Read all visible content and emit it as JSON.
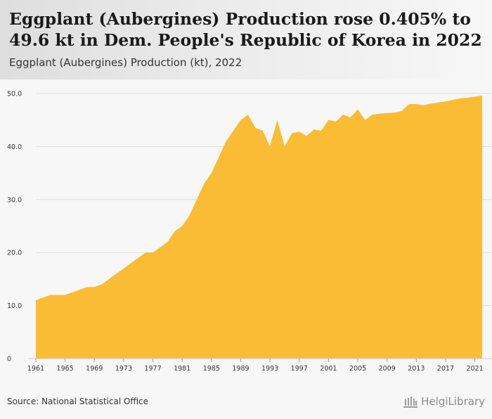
{
  "header": {
    "title": "Eggplant (Aubergines) Production rose 0.405% to 49.6 kt in Dem. People's Republic of Korea in 2022",
    "subtitle": "Eggplant (Aubergines) Production (kt), 2022"
  },
  "footer": {
    "source": "Source: National Statistical Office",
    "logo_text": "HelgiLibrary"
  },
  "colors": {
    "area_fill": "#f9bc34",
    "gridline": "#dddddd",
    "chart_bg": "#f7f7f7"
  },
  "chart_data": {
    "type": "area",
    "title": "Eggplant (Aubergines) Production (kt), 2022",
    "xlabel": "",
    "ylabel": "",
    "ylim": [
      0,
      50
    ],
    "xlim": [
      1961,
      2022
    ],
    "grid": true,
    "y_ticks": [
      "0",
      "10.0",
      "20.0",
      "30.0",
      "40.0",
      "50.0"
    ],
    "x_ticks": [
      "1961",
      "1965",
      "1969",
      "1973",
      "1977",
      "1981",
      "1985",
      "1989",
      "1993",
      "1997",
      "2001",
      "2005",
      "2009",
      "2013",
      "2017",
      "2021"
    ],
    "series": [
      {
        "x": [
          1961,
          1962,
          1963,
          1964,
          1965,
          1966,
          1967,
          1968,
          1969,
          1970,
          1971,
          1972,
          1973,
          1974,
          1975,
          1976,
          1977,
          1978,
          1979,
          1980,
          1981,
          1982,
          1983,
          1984,
          1985,
          1986,
          1987,
          1988,
          1989,
          1990,
          1991,
          1992,
          1993,
          1994,
          1995,
          1996,
          1997,
          1998,
          1999,
          2000,
          2001,
          2002,
          2003,
          2004,
          2005,
          2006,
          2007,
          2008,
          2009,
          2010,
          2011,
          2012,
          2013,
          2014,
          2015,
          2016,
          2017,
          2018,
          2019,
          2020,
          2021,
          2022
        ],
        "values": [
          11.0,
          11.5,
          12.0,
          12.0,
          12.0,
          12.5,
          13.0,
          13.5,
          13.5,
          14.0,
          15.0,
          16.0,
          17.0,
          18.0,
          19.0,
          20.0,
          20.0,
          21.0,
          22.0,
          24.0,
          25.0,
          27.0,
          30.0,
          33.0,
          35.0,
          38.0,
          41.0,
          43.0,
          45.0,
          46.0,
          43.5,
          43.0,
          40.0,
          45.0,
          40.0,
          42.5,
          42.8,
          42.0,
          43.2,
          43.0,
          45.0,
          44.7,
          46.0,
          45.5,
          47.0,
          45.0,
          46.0,
          46.2,
          46.3,
          46.4,
          46.7,
          48.0,
          48.0,
          47.8,
          48.1,
          48.3,
          48.5,
          48.8,
          49.1,
          49.2,
          49.4,
          49.6
        ]
      }
    ]
  }
}
